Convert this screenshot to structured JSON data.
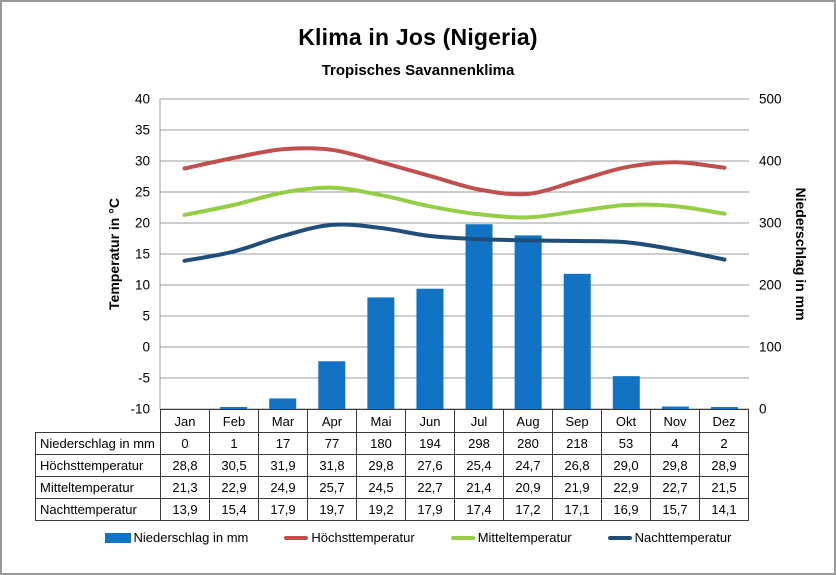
{
  "title": "Klima in Jos (Nigeria)",
  "subtitle": "Tropisches Savannenklima",
  "chart_data": {
    "type": "bar+line combo",
    "categories": [
      "Jan",
      "Feb",
      "Mar",
      "Apr",
      "Mai",
      "Jun",
      "Jul",
      "Aug",
      "Sep",
      "Okt",
      "Nov",
      "Dez"
    ],
    "series": [
      {
        "name": "Niederschlag in mm",
        "type": "bar",
        "axis": "right",
        "color": "#1273C4",
        "values": [
          0,
          1,
          17,
          77,
          180,
          194,
          298,
          280,
          218,
          53,
          4,
          2
        ]
      },
      {
        "name": "Höchsttemperatur",
        "type": "line",
        "axis": "left",
        "color": "#C0504D",
        "values": [
          28.8,
          30.5,
          31.9,
          31.8,
          29.8,
          27.6,
          25.4,
          24.7,
          26.8,
          29.0,
          29.8,
          28.9
        ]
      },
      {
        "name": "Mitteltemperatur",
        "type": "line",
        "axis": "left",
        "color": "#94CE44",
        "values": [
          21.3,
          22.9,
          24.9,
          25.7,
          24.5,
          22.7,
          21.4,
          20.9,
          21.9,
          22.9,
          22.7,
          21.5
        ]
      },
      {
        "name": "Nachttemperatur",
        "type": "line",
        "axis": "left",
        "color": "#1F4E79",
        "values": [
          13.9,
          15.4,
          17.9,
          19.7,
          19.2,
          17.9,
          17.4,
          17.2,
          17.1,
          16.9,
          15.7,
          14.1
        ]
      }
    ],
    "left_axis": {
      "label": "Temperatur in °C",
      "min": -10,
      "max": 40,
      "step": 5,
      "ticks": [
        40,
        35,
        30,
        25,
        20,
        15,
        10,
        5,
        0,
        -5,
        -10
      ]
    },
    "right_axis": {
      "label": "Niederschlag in mm",
      "min": 0,
      "max": 500,
      "step": 100,
      "ticks": [
        500,
        400,
        300,
        200,
        100,
        0
      ]
    },
    "grid": true,
    "legend_position": "bottom"
  },
  "table": {
    "header": [
      "Jan",
      "Feb",
      "Mar",
      "Apr",
      "Mai",
      "Jun",
      "Jul",
      "Aug",
      "Sep",
      "Okt",
      "Nov",
      "Dez"
    ],
    "rows": [
      {
        "label": "Niederschlag in mm",
        "values": [
          "0",
          "1",
          "17",
          "77",
          "180",
          "194",
          "298",
          "280",
          "218",
          "53",
          "4",
          "2"
        ]
      },
      {
        "label": "Höchsttemperatur",
        "values": [
          "28,8",
          "30,5",
          "31,9",
          "31,8",
          "29,8",
          "27,6",
          "25,4",
          "24,7",
          "26,8",
          "29,0",
          "29,8",
          "28,9"
        ]
      },
      {
        "label": "Mitteltemperatur",
        "values": [
          "21,3",
          "22,9",
          "24,9",
          "25,7",
          "24,5",
          "22,7",
          "21,4",
          "20,9",
          "21,9",
          "22,9",
          "22,7",
          "21,5"
        ]
      },
      {
        "label": "Nachttemperatur",
        "values": [
          "13,9",
          "15,4",
          "17,9",
          "19,7",
          "19,2",
          "17,9",
          "17,4",
          "17,2",
          "17,1",
          "16,9",
          "15,7",
          "14,1"
        ]
      }
    ]
  },
  "legend": {
    "items": [
      {
        "label": "Niederschlag in mm",
        "marker": "bar",
        "color": "#1273C4"
      },
      {
        "label": "Höchsttemperatur",
        "marker": "line",
        "color": "#C0504D"
      },
      {
        "label": "Mitteltemperatur",
        "marker": "line",
        "color": "#94CE44"
      },
      {
        "label": "Nachttemperatur",
        "marker": "line",
        "color": "#1F4E79"
      }
    ]
  },
  "colors": {
    "background": "#ffffff",
    "frame_border": "#9a9a9a",
    "gridline": "#9b9b9b",
    "table_border": "#3a3a3a",
    "text": "#000000"
  }
}
